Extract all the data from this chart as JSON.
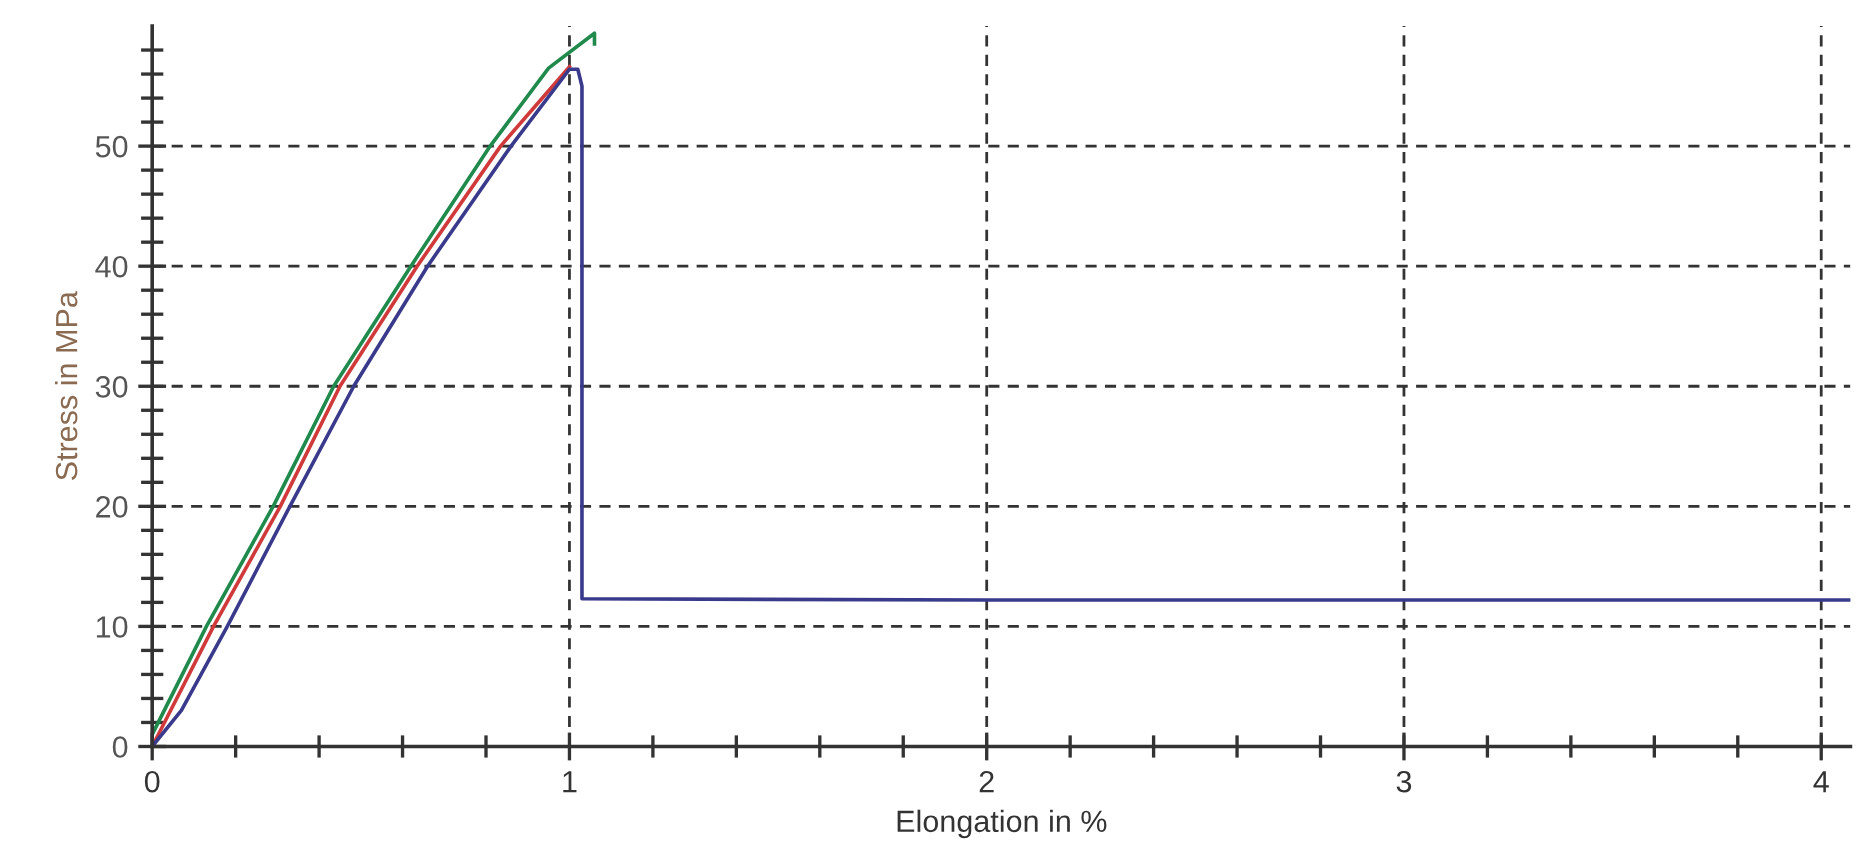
{
  "chart_data": {
    "type": "line",
    "xlabel": "Elongation in %",
    "ylabel": "Stress in MPa",
    "xlim": [
      0,
      4.07
    ],
    "ylim": [
      0,
      60
    ],
    "xticks": [
      0,
      {
        "value": 0.2,
        "label": null
      },
      {
        "value": 0.4,
        "label": null
      },
      {
        "value": 0.6,
        "label": null
      },
      {
        "value": 0.8,
        "label": null
      },
      1,
      {
        "value": 1.2,
        "label": null
      },
      {
        "value": 1.4,
        "label": null
      },
      {
        "value": 1.6,
        "label": null
      },
      {
        "value": 1.8,
        "label": null
      },
      2,
      {
        "value": 2.2,
        "label": null
      },
      {
        "value": 2.4,
        "label": null
      },
      {
        "value": 2.6,
        "label": null
      },
      {
        "value": 2.8,
        "label": null
      },
      3,
      {
        "value": 3.2,
        "label": null
      },
      {
        "value": 3.4,
        "label": null
      },
      {
        "value": 3.6,
        "label": null
      },
      {
        "value": 3.8,
        "label": null
      },
      4
    ],
    "yticks": [
      0,
      {
        "value": 2,
        "label": null
      },
      {
        "value": 4,
        "label": null
      },
      {
        "value": 6,
        "label": null
      },
      {
        "value": 8,
        "label": null
      },
      10,
      {
        "value": 12,
        "label": null
      },
      {
        "value": 14,
        "label": null
      },
      {
        "value": 16,
        "label": null
      },
      {
        "value": 18,
        "label": null
      },
      20,
      {
        "value": 22,
        "label": null
      },
      {
        "value": 24,
        "label": null
      },
      {
        "value": 26,
        "label": null
      },
      {
        "value": 28,
        "label": null
      },
      30,
      {
        "value": 32,
        "label": null
      },
      {
        "value": 34,
        "label": null
      },
      {
        "value": 36,
        "label": null
      },
      {
        "value": 38,
        "label": null
      },
      40,
      {
        "value": 42,
        "label": null
      },
      {
        "value": 44,
        "label": null
      },
      {
        "value": 46,
        "label": null
      },
      {
        "value": 48,
        "label": null
      },
      50,
      {
        "value": 52,
        "label": null
      },
      {
        "value": 54,
        "label": null
      },
      {
        "value": 56,
        "label": null
      },
      {
        "value": 58,
        "label": null
      }
    ],
    "grid": true,
    "line_style": "solid",
    "marker": "none",
    "series": [
      {
        "color": "#1f8a4c",
        "x": [
          0,
          0.13,
          0.29,
          0.435,
          0.62,
          0.81,
          0.95,
          1.06,
          1.06
        ],
        "values": [
          1,
          10,
          20,
          30,
          40,
          50,
          56.5,
          59.4,
          58.5
        ]
      },
      {
        "color": "#d03a3a",
        "x": [
          0,
          0.147,
          0.307,
          0.45,
          0.635,
          0.835,
          1.0
        ],
        "values": [
          0,
          10,
          20,
          30,
          40,
          50,
          56.6
        ]
      },
      {
        "color": "#3a3a8c",
        "x": [
          0,
          0.07,
          0.18,
          0.33,
          0.483,
          0.66,
          0.86,
          1.0,
          1.02,
          1.03,
          1.03,
          2.0,
          3.0,
          4.07
        ],
        "values": [
          0,
          3,
          10,
          20,
          30,
          40,
          50,
          56.4,
          56.4,
          55,
          12.3,
          12.2,
          12.2,
          12.2
        ]
      }
    ]
  }
}
